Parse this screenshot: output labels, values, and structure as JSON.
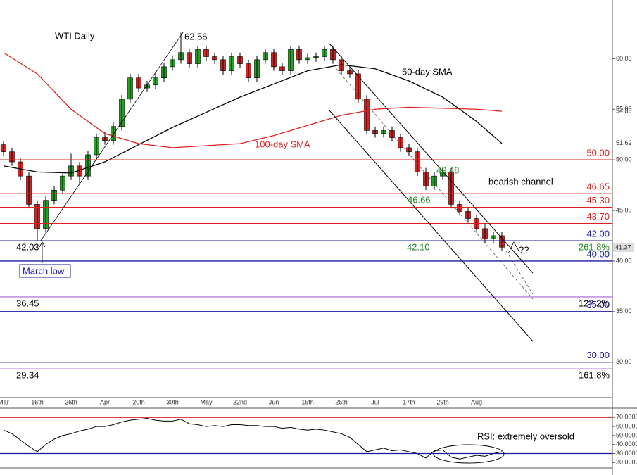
{
  "chart_data": {
    "type": "candlestick",
    "title": "WTI Daily",
    "categories": [
      "Mar",
      null,
      null,
      null,
      "16th",
      null,
      null,
      null,
      "26th",
      null,
      null,
      null,
      "Apr",
      null,
      null,
      null,
      "20th",
      null,
      null,
      null,
      "30th",
      null,
      null,
      null,
      "May",
      null,
      null,
      null,
      "22nd",
      null,
      null,
      null,
      "Jun",
      null,
      null,
      null,
      "15th",
      null,
      null,
      null,
      "25th",
      null,
      null,
      null,
      "Jul",
      null,
      null,
      null,
      "17th",
      null,
      null,
      null,
      "29th",
      null,
      null,
      null,
      "Aug",
      null,
      null,
      null
    ],
    "open": [
      51.5,
      50.8,
      49.8,
      48.4,
      45.6,
      43.2,
      46.0,
      47.0,
      48.4,
      49.4,
      48.4,
      50.5,
      52.2,
      51.9,
      53.3,
      56.0,
      58.1,
      57.1,
      57.4,
      58.1,
      59.2,
      59.9,
      60.6,
      59.5,
      60.9,
      60.2,
      59.9,
      58.8,
      60.2,
      59.5,
      58.1,
      59.9,
      60.6,
      59.2,
      58.8,
      60.9,
      59.9,
      60.1,
      60.2,
      60.9,
      59.9,
      58.8,
      58.5,
      56.0,
      52.9,
      52.6,
      52.9,
      52.2,
      51.2,
      50.8,
      48.8,
      47.4,
      48.4,
      48.8,
      45.6,
      44.9,
      44.2,
      43.2,
      42.2,
      42.5
    ],
    "high": [
      51.9,
      51.2,
      50.2,
      48.8,
      46.0,
      46.4,
      47.4,
      48.8,
      50.6,
      49.8,
      50.9,
      52.6,
      52.8,
      53.7,
      56.4,
      58.5,
      58.5,
      57.8,
      58.5,
      59.6,
      60.3,
      62.56,
      61.0,
      61.3,
      61.3,
      60.6,
      60.3,
      60.6,
      60.6,
      59.9,
      60.3,
      61.0,
      61.0,
      59.6,
      61.3,
      61.3,
      60.5,
      60.6,
      61.3,
      61.3,
      60.3,
      59.2,
      58.9,
      56.4,
      53.3,
      53.3,
      53.3,
      52.6,
      51.6,
      51.2,
      49.2,
      48.8,
      49.2,
      49.2,
      46.0,
      45.3,
      44.6,
      43.6,
      42.9,
      42.9
    ],
    "low": [
      50.4,
      49.4,
      48.0,
      45.2,
      42.03,
      42.8,
      45.6,
      46.6,
      48.0,
      47.6,
      48.0,
      50.1,
      51.5,
      51.5,
      52.9,
      55.6,
      56.7,
      56.7,
      57.0,
      57.7,
      58.8,
      59.5,
      59.1,
      59.1,
      59.8,
      59.5,
      58.4,
      58.4,
      59.1,
      57.7,
      57.7,
      59.5,
      58.8,
      58.4,
      58.4,
      59.5,
      59.5,
      59.7,
      59.8,
      59.5,
      58.4,
      58.1,
      55.6,
      52.5,
      52.2,
      52.2,
      51.8,
      50.8,
      50.4,
      48.4,
      47.0,
      47.0,
      48.0,
      45.2,
      44.5,
      43.8,
      42.8,
      41.8,
      41.8,
      41.0
    ],
    "close": [
      50.8,
      49.8,
      48.4,
      45.6,
      43.2,
      46.0,
      47.0,
      48.4,
      49.4,
      48.4,
      50.5,
      52.2,
      51.9,
      53.3,
      56.0,
      58.1,
      57.1,
      57.4,
      58.1,
      59.2,
      59.9,
      60.6,
      59.5,
      60.9,
      60.2,
      59.9,
      58.8,
      60.2,
      59.5,
      58.1,
      59.9,
      60.6,
      59.2,
      58.8,
      60.9,
      59.9,
      60.1,
      60.2,
      60.9,
      59.9,
      58.8,
      58.5,
      56.0,
      52.9,
      52.6,
      52.9,
      52.2,
      51.2,
      50.8,
      48.8,
      47.4,
      48.4,
      48.8,
      45.6,
      44.9,
      44.2,
      43.2,
      42.2,
      42.5,
      41.37
    ],
    "up_color": "#22a322",
    "down_color": "#e0201e",
    "ylim": [
      26.5,
      65.8
    ],
    "yticks": [
      {
        "value": 30,
        "label": "30.00"
      },
      {
        "value": 35,
        "label": "35.00"
      },
      {
        "value": 40,
        "label": "40.00"
      },
      {
        "value": 45,
        "label": "45.00"
      },
      {
        "value": 50,
        "label": "50.00"
      },
      {
        "value": 55,
        "label": "55.00"
      },
      {
        "value": 60,
        "label": "60.00"
      }
    ],
    "overlays": [
      {
        "name": "50-day SMA",
        "color": "#000000",
        "x": [
          0,
          4,
          8,
          12,
          16,
          20,
          24,
          28,
          32,
          36,
          40,
          44,
          48,
          52,
          56,
          59
        ],
        "values": [
          49.4,
          48.8,
          48.7,
          49.8,
          51.5,
          53.2,
          54.7,
          56.2,
          57.5,
          58.8,
          59.4,
          59.0,
          57.8,
          56.2,
          53.8,
          51.62
        ],
        "end_label": "51.62"
      },
      {
        "name": "100-day SMA",
        "color": "#e0201e",
        "x": [
          0,
          4,
          8,
          12,
          16,
          20,
          24,
          28,
          32,
          36,
          40,
          44,
          48,
          52,
          56,
          59
        ],
        "values": [
          60.6,
          58.5,
          55.0,
          52.6,
          51.6,
          51.2,
          51.4,
          51.6,
          52.4,
          53.4,
          54.4,
          55.0,
          55.2,
          55.1,
          55.0,
          54.8
        ],
        "end_label": "54.80"
      }
    ],
    "levels": [
      {
        "value": 50,
        "label": "50.00",
        "color": "#e0201e"
      },
      {
        "value": 46.65,
        "label": "46.65",
        "color": "#e0201e"
      },
      {
        "value": 45.3,
        "label": "45.30",
        "color": "#e0201e"
      },
      {
        "value": 43.7,
        "label": "43.70",
        "color": "#e0201e"
      },
      {
        "value": 42,
        "label": "42.00",
        "color": "#1a1aa0",
        "note": "261.8%",
        "note_color": "#1f8a1f"
      },
      {
        "value": 40,
        "label": "40.00",
        "color": "#1a1aa0"
      },
      {
        "value": 36.45,
        "left_label": "36.45",
        "color": "#b67fd6",
        "note": "127.2%",
        "note_color": "#000000"
      },
      {
        "value": 35,
        "label": "35.00",
        "color": "#1a1aa0"
      },
      {
        "value": 30,
        "label": "30.00",
        "color": "#1a1aa0"
      },
      {
        "value": 29.34,
        "left_label": "29.34",
        "color": "#b67fd6",
        "note": "161.8%",
        "note_color": "#000000"
      }
    ],
    "annotations": [
      "62.56",
      "100-day SMA",
      "50-day SMA",
      "bearish channel",
      "49.48",
      "46.66",
      "42.10",
      "??",
      "42.03",
      "March low",
      "41.37"
    ],
    "rsi": {
      "values": [
        56,
        52,
        45,
        38,
        32,
        40,
        46,
        50,
        52,
        55,
        57,
        60,
        60,
        62,
        65,
        67,
        68,
        69,
        67,
        66,
        66,
        68,
        63,
        62,
        60,
        61,
        60,
        62,
        62,
        61,
        61,
        60,
        60,
        58,
        59,
        57,
        56,
        57,
        56,
        54,
        52,
        48,
        40,
        32,
        34,
        36,
        33,
        34,
        32,
        30,
        25,
        33,
        34,
        26,
        24,
        26,
        28,
        27,
        30,
        32
      ],
      "color": "#000000",
      "ylim": [
        14,
        78
      ],
      "yticks": [
        {
          "value": 20,
          "label": "20.0000"
        },
        {
          "value": 30,
          "label": "30.0000"
        },
        {
          "value": 40,
          "label": "40.0000"
        },
        {
          "value": 50,
          "label": "50.0000"
        },
        {
          "value": 60,
          "label": "60.0000"
        },
        {
          "value": 70,
          "label": "70.0000"
        }
      ],
      "levels": [
        {
          "value": 70,
          "color": "#e0201e"
        },
        {
          "value": 30,
          "color": "#1a1aa0"
        }
      ],
      "annotation": "RSI: extremely oversold"
    }
  }
}
